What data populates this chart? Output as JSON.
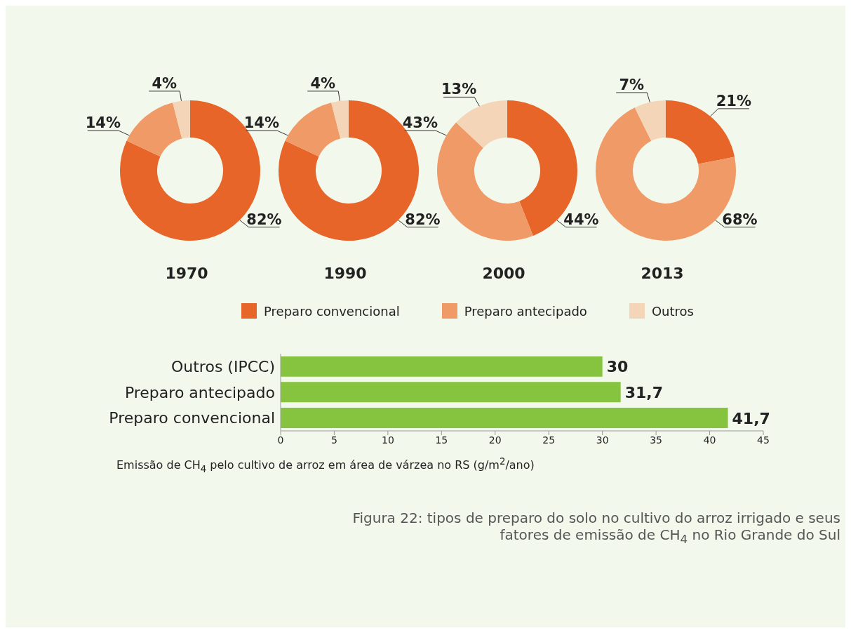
{
  "chart_data": [
    {
      "type": "donut",
      "title": "1970",
      "categories": [
        "Preparo convencional",
        "Preparo antecipado",
        "Outros"
      ],
      "values": [
        82,
        14,
        4
      ],
      "colors": [
        "#e8652a",
        "#f09a68",
        "#f5d5b8"
      ],
      "value_labels": [
        "82%",
        "14%",
        "4%"
      ],
      "legend": "bottom"
    },
    {
      "type": "donut",
      "title": "1990",
      "values": [
        82,
        14,
        4
      ],
      "colors": [
        "#e8652a",
        "#f09a68",
        "#f5d5b8"
      ],
      "value_labels": [
        "82%",
        "14%",
        "4%"
      ]
    },
    {
      "type": "donut",
      "title": "2000",
      "values": [
        44,
        43,
        13
      ],
      "colors": [
        "#e8652a",
        "#f09a68",
        "#f5d5b8"
      ],
      "value_labels": [
        "44%",
        "43%",
        "13%"
      ]
    },
    {
      "type": "donut",
      "title": "2013",
      "values": [
        21,
        68,
        7
      ],
      "colors": [
        "#e8652a",
        "#f09a68",
        "#f5d5b8"
      ],
      "value_labels": [
        "21%",
        "68%",
        "7%"
      ]
    },
    {
      "type": "bar",
      "orientation": "horizontal",
      "categories": [
        "Outros (IPCC)",
        "Preparo antecipado",
        "Preparo convencional"
      ],
      "values": [
        30,
        31.7,
        41.7
      ],
      "color": "#86c440",
      "value_labels": [
        "30",
        "31,7",
        "41,7"
      ],
      "xlim": [
        0,
        45
      ],
      "xticks": [
        0,
        5,
        10,
        15,
        20,
        25,
        30,
        35,
        40,
        45
      ],
      "xlabel": "Emissão de CH$_{4}$ pelo cultivo de arroz em área de várzea no RS (g/m$^{2}$/ano)",
      "annotations": [
        "Figura 22: tipos de preparo do solo no cultivo do arroz irrigado e seus fatores de emissão de CH$_{4}$ no Rio Grande do Sul"
      ]
    }
  ]
}
